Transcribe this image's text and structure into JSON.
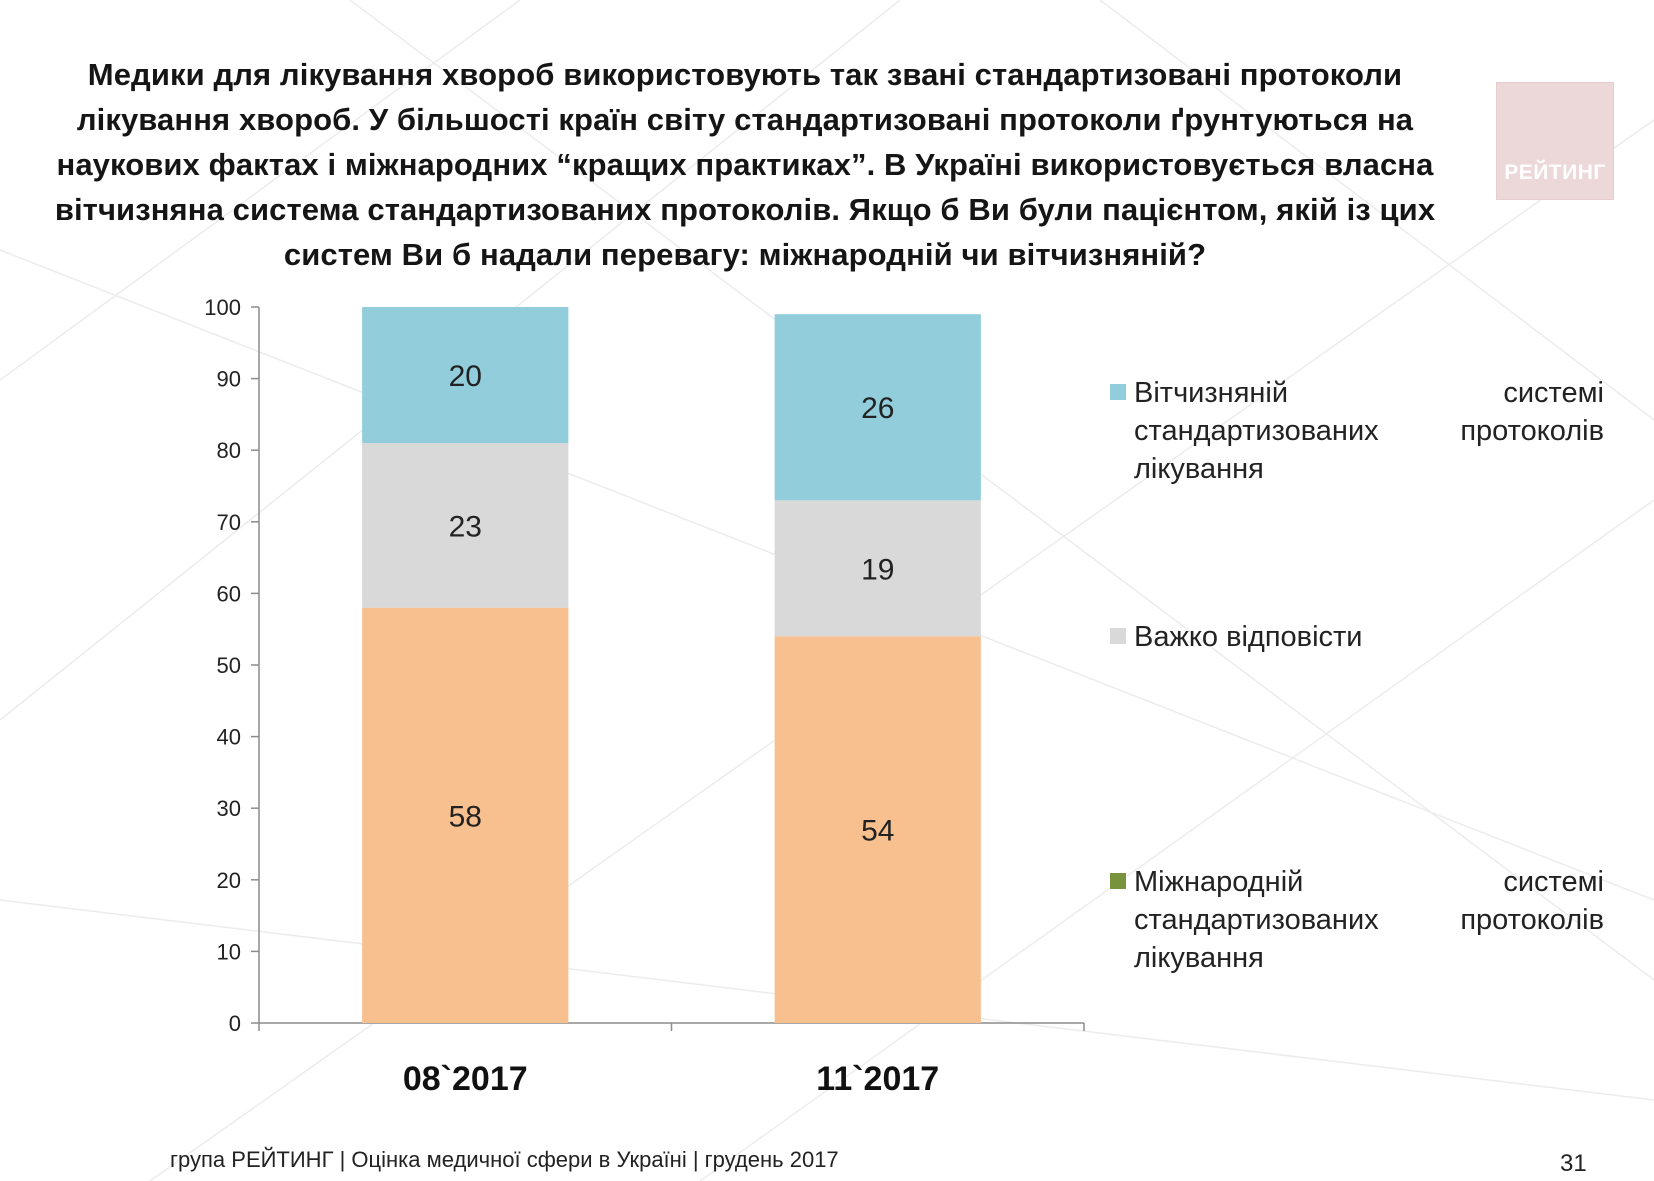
{
  "title": "Медики для лікування хвороб використовують так звані стандартизовані протоколи лікування хвороб. У більшості країн світу стандартизовані протоколи ґрунтуються на наукових фактах і міжнародних “кращих практиках”. В Україні використовується власна вітчизняна система стандартизованих протоколів. Якщо б Ви були пацієнтом, якій із цих систем Ви б надали перевагу: міжнародній чи вітчизняній?",
  "logo": {
    "text": "РЕЙТИНГ"
  },
  "footer": {
    "text": "група РЕЙТИНГ  |  Оцінка медичної сфери в Україні  |  грудень 2017",
    "page_number": "31"
  },
  "colors": {
    "international": "#f9c08f",
    "hard_to_say": "#d9d9d9",
    "domestic": "#92cddc",
    "legend_international": "#77933c"
  },
  "chart_data": {
    "type": "bar",
    "stacked": true,
    "categories": [
      "08`2017",
      "11`2017"
    ],
    "series": [
      {
        "name": "Міжнародній системі стандартизованих протоколів лікування",
        "values": [
          58,
          54
        ]
      },
      {
        "name": "Важко відповісти",
        "values": [
          23,
          19
        ]
      },
      {
        "name": "Вітчизняній системі стандартизованих протоколів лікування",
        "values": [
          20,
          26
        ]
      }
    ],
    "ylim": [
      0,
      100
    ],
    "yticks": [
      0,
      10,
      20,
      30,
      40,
      50,
      60,
      70,
      80,
      90,
      100
    ],
    "xlabel": "",
    "ylabel": "",
    "legend": {
      "position": "right",
      "items": [
        {
          "lines": [
            [
              "Вітчизняній",
              "системі"
            ],
            [
              "стандартизованих",
              "протоколів"
            ],
            [
              "лікування",
              ""
            ]
          ]
        },
        {
          "lines": [
            [
              "Важко відповісти",
              ""
            ]
          ]
        },
        {
          "lines": [
            [
              "Міжнародній",
              "системі"
            ],
            [
              "стандартизованих",
              "протоколів"
            ],
            [
              "лікування",
              ""
            ]
          ]
        }
      ]
    }
  }
}
